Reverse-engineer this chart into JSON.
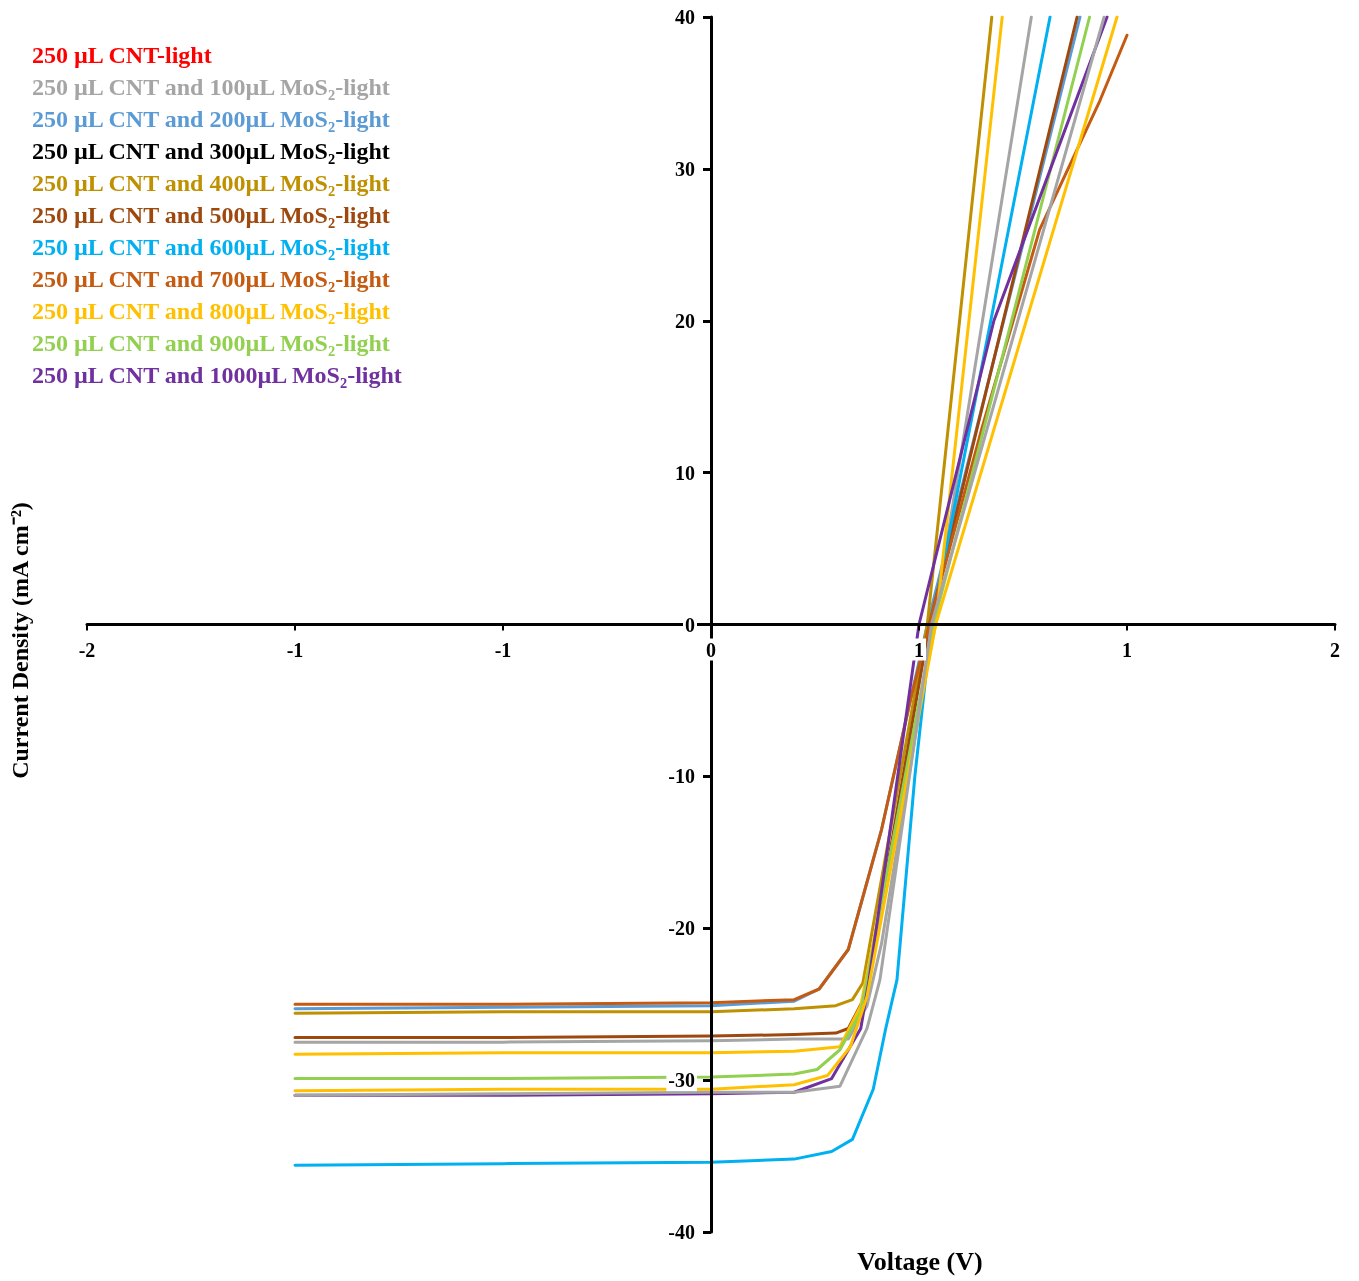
{
  "chart_data": {
    "type": "line",
    "xlabel": "Voltage (V)",
    "ylabel": "Current Density (mA cm⁻²)",
    "xlim": [
      -1.5,
      1.5
    ],
    "xticks": [
      {
        "value": -1.5,
        "label": "-2"
      },
      {
        "value": -1,
        "label": "-1"
      },
      {
        "value": -0.5,
        "label": "-1"
      },
      {
        "value": 0,
        "label": "0"
      },
      {
        "value": 0.5,
        "label": "1"
      },
      {
        "value": 1,
        "label": "1"
      },
      {
        "value": 1.5,
        "label": "2"
      }
    ],
    "ylim": [
      -40,
      40
    ],
    "yticks": [
      -40,
      -30,
      -20,
      -10,
      0,
      10,
      20,
      30,
      40
    ],
    "grid": false,
    "legend": "top left",
    "marker": "none",
    "line_style": "solid",
    "series": [
      {
        "name": "250 µL CNT-light",
        "color": "#ff0000"
      },
      {
        "name": "250 µL CNT and 100µL MoS₂-light",
        "color": "#a5a5a5",
        "x": [
          -1,
          -0.5,
          0,
          0.2,
          0.3,
          0.33,
          0.375,
          0.41,
          0.535,
          0.77
        ],
        "values": [
          -27.5,
          -27.5,
          -27.4,
          -27.3,
          -27.3,
          -27.3,
          -25.1,
          -21,
          0,
          40
        ]
      },
      {
        "name": "250 µL CNT and 200µL MoS₂-light",
        "color": "#5b9bd5",
        "x": [
          -1,
          -0.5,
          0,
          0.2,
          0.26,
          0.33,
          0.41,
          0.48,
          0.52,
          0.887
        ],
        "values": [
          -25.3,
          -25.2,
          -25.1,
          -24.8,
          -24,
          -21.4,
          -13.5,
          -4.9,
          0,
          40
        ]
      },
      {
        "name": "250 µL CNT and 300µL MoS₂-light",
        "color": "#000000"
      },
      {
        "name": "250 µL CNT and 400µL MoS₂-light",
        "color": "#bf9000",
        "x": [
          -1,
          -0.5,
          0,
          0.2,
          0.3,
          0.34,
          0.365,
          0.52,
          0.675
        ],
        "values": [
          -25.6,
          -25.5,
          -25.5,
          -25.3,
          -25.1,
          -24.7,
          -23.6,
          0,
          40
        ]
      },
      {
        "name": "250 µL CNT and 500µL MoS₂-light",
        "color": "#9e480e",
        "x": [
          -1,
          -0.5,
          0,
          0.2,
          0.3,
          0.33,
          0.37,
          0.525,
          0.88
        ],
        "values": [
          -27.2,
          -27.2,
          -27.1,
          -27,
          -26.9,
          -26.6,
          -24.5,
          0,
          40
        ]
      },
      {
        "name": "250 µL CNT and 600µL MoS₂-light",
        "color": "#00b0f0",
        "x": [
          -1,
          -0.5,
          0,
          0.2,
          0.29,
          0.34,
          0.39,
          0.42,
          0.447,
          0.49,
          0.53,
          0.815
        ],
        "values": [
          -35.6,
          -35.5,
          -35.4,
          -35.2,
          -34.7,
          -33.9,
          -30.6,
          -26.6,
          -23.4,
          -10,
          0,
          40
        ]
      },
      {
        "name": "250 µL CNT and 700µL MoS₂-light",
        "color": "#c55a11",
        "x": [
          -1,
          -0.5,
          0,
          0.2,
          0.26,
          0.33,
          0.41,
          0.48,
          0.54,
          0.65,
          0.79,
          0.935,
          1.0
        ],
        "values": [
          -25,
          -25,
          -24.9,
          -24.7,
          -24,
          -21.4,
          -13.5,
          -4.9,
          1.6,
          12.8,
          26,
          34.5,
          38.8
        ]
      },
      {
        "name": "250 µL CNT and 800µL MoS₂-light",
        "color": "#ffc000",
        "x": [
          -1,
          -0.5,
          0,
          0.2,
          0.31,
          0.36,
          0.54,
          0.7
        ],
        "values": [
          -28.3,
          -28.2,
          -28.2,
          -28.1,
          -27.8,
          -25.1,
          0,
          40
        ]
      },
      {
        "name": "250 µL CNT and 900µL MoS₂-light",
        "color": "#92d050",
        "x": [
          -1,
          -0.5,
          0,
          0.2,
          0.255,
          0.31,
          0.36,
          0.375,
          0.535,
          0.91
        ],
        "values": [
          -29.9,
          -29.9,
          -29.8,
          -29.6,
          -29.3,
          -28,
          -25.5,
          -23.4,
          0,
          40
        ]
      },
      {
        "name": "250 µL CNT and 1000µL MoS₂-light",
        "color": "#7030a0",
        "x": [
          -1,
          -0.5,
          0,
          0.2,
          0.29,
          0.36,
          0.38,
          0.5,
          0.68,
          0.952
        ],
        "values": [
          -31,
          -31,
          -30.9,
          -30.8,
          -29.9,
          -26.6,
          -23.4,
          0,
          20,
          40
        ]
      },
      {
        "color": "#ffc000",
        "x": [
          -1,
          -0.5,
          0,
          0.2,
          0.28,
          0.335,
          0.375,
          0.54,
          0.976
        ],
        "values": [
          -30.7,
          -30.6,
          -30.6,
          -30.3,
          -29.7,
          -27.8,
          -24.5,
          0,
          40
        ]
      },
      {
        "color": "#a5a5a5",
        "x": [
          -1,
          -0.5,
          0,
          0.2,
          0.31,
          0.375,
          0.406,
          0.53,
          0.945
        ],
        "values": [
          -31,
          -30.9,
          -30.8,
          -30.8,
          -30.4,
          -26.6,
          -23.4,
          0,
          40
        ]
      }
    ]
  }
}
